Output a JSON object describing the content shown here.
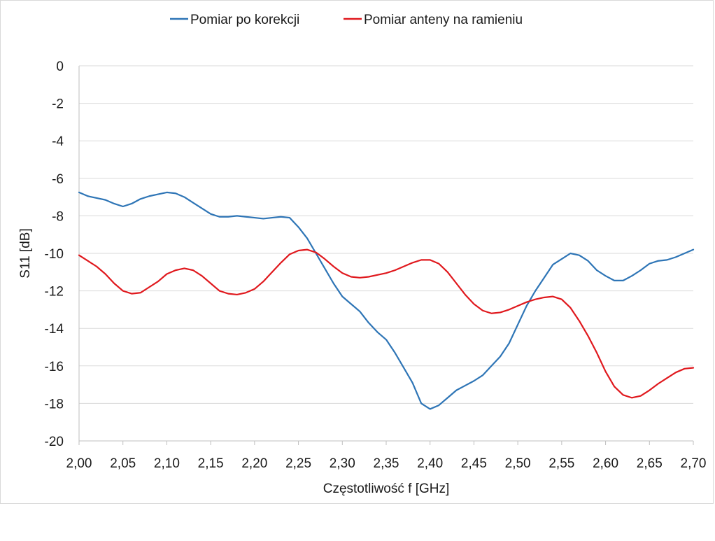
{
  "chart_data": {
    "type": "line",
    "xlabel": "Częstotliwość f [GHz]",
    "ylabel": "S11 [dB]",
    "xlim": [
      2.0,
      2.7
    ],
    "ylim": [
      -20,
      0
    ],
    "x_ticks": [
      2.0,
      2.05,
      2.1,
      2.15,
      2.2,
      2.25,
      2.3,
      2.35,
      2.4,
      2.45,
      2.5,
      2.55,
      2.6,
      2.65,
      2.7
    ],
    "x_tick_labels": [
      "2,00",
      "2,05",
      "2,10",
      "2,15",
      "2,20",
      "2,25",
      "2,30",
      "2,35",
      "2,40",
      "2,45",
      "2,50",
      "2,55",
      "2,60",
      "2,65",
      "2,70"
    ],
    "y_ticks": [
      0,
      -2,
      -4,
      -6,
      -8,
      -10,
      -12,
      -14,
      -16,
      -18,
      -20
    ],
    "y_tick_labels": [
      "0",
      "-2",
      "-4",
      "-6",
      "-8",
      "-10",
      "-12",
      "-14",
      "-16",
      "-18",
      "-20"
    ],
    "grid": "horizontal",
    "legend_position": "top",
    "series": [
      {
        "name": "Pomiar po korekcji",
        "color": "#2e75b6",
        "points": [
          [
            2.0,
            -6.75
          ],
          [
            2.01,
            -6.95
          ],
          [
            2.02,
            -7.05
          ],
          [
            2.03,
            -7.15
          ],
          [
            2.04,
            -7.35
          ],
          [
            2.05,
            -7.5
          ],
          [
            2.06,
            -7.35
          ],
          [
            2.07,
            -7.1
          ],
          [
            2.08,
            -6.95
          ],
          [
            2.09,
            -6.85
          ],
          [
            2.1,
            -6.75
          ],
          [
            2.11,
            -6.8
          ],
          [
            2.12,
            -7.0
          ],
          [
            2.13,
            -7.3
          ],
          [
            2.14,
            -7.6
          ],
          [
            2.15,
            -7.9
          ],
          [
            2.16,
            -8.05
          ],
          [
            2.17,
            -8.05
          ],
          [
            2.18,
            -8.0
          ],
          [
            2.19,
            -8.05
          ],
          [
            2.2,
            -8.1
          ],
          [
            2.21,
            -8.15
          ],
          [
            2.22,
            -8.1
          ],
          [
            2.23,
            -8.05
          ],
          [
            2.24,
            -8.1
          ],
          [
            2.25,
            -8.6
          ],
          [
            2.26,
            -9.2
          ],
          [
            2.27,
            -10.0
          ],
          [
            2.28,
            -10.8
          ],
          [
            2.29,
            -11.6
          ],
          [
            2.3,
            -12.3
          ],
          [
            2.31,
            -12.7
          ],
          [
            2.32,
            -13.1
          ],
          [
            2.33,
            -13.7
          ],
          [
            2.34,
            -14.2
          ],
          [
            2.35,
            -14.6
          ],
          [
            2.36,
            -15.3
          ],
          [
            2.37,
            -16.1
          ],
          [
            2.38,
            -16.9
          ],
          [
            2.39,
            -18.0
          ],
          [
            2.4,
            -18.3
          ],
          [
            2.41,
            -18.1
          ],
          [
            2.42,
            -17.7
          ],
          [
            2.43,
            -17.3
          ],
          [
            2.44,
            -17.05
          ],
          [
            2.45,
            -16.8
          ],
          [
            2.46,
            -16.5
          ],
          [
            2.47,
            -16.0
          ],
          [
            2.48,
            -15.5
          ],
          [
            2.49,
            -14.8
          ],
          [
            2.5,
            -13.8
          ],
          [
            2.51,
            -12.8
          ],
          [
            2.52,
            -12.0
          ],
          [
            2.53,
            -11.3
          ],
          [
            2.54,
            -10.6
          ],
          [
            2.55,
            -10.3
          ],
          [
            2.56,
            -10.0
          ],
          [
            2.57,
            -10.1
          ],
          [
            2.58,
            -10.4
          ],
          [
            2.59,
            -10.9
          ],
          [
            2.6,
            -11.2
          ],
          [
            2.61,
            -11.45
          ],
          [
            2.62,
            -11.45
          ],
          [
            2.63,
            -11.2
          ],
          [
            2.64,
            -10.9
          ],
          [
            2.65,
            -10.55
          ],
          [
            2.66,
            -10.4
          ],
          [
            2.67,
            -10.35
          ],
          [
            2.68,
            -10.2
          ],
          [
            2.69,
            -10.0
          ],
          [
            2.7,
            -9.8
          ]
        ]
      },
      {
        "name": "Pomiar anteny na ramieniu",
        "color": "#e0191e",
        "points": [
          [
            2.0,
            -10.1
          ],
          [
            2.01,
            -10.4
          ],
          [
            2.02,
            -10.7
          ],
          [
            2.03,
            -11.1
          ],
          [
            2.04,
            -11.6
          ],
          [
            2.05,
            -12.0
          ],
          [
            2.06,
            -12.15
          ],
          [
            2.07,
            -12.1
          ],
          [
            2.08,
            -11.8
          ],
          [
            2.09,
            -11.5
          ],
          [
            2.1,
            -11.1
          ],
          [
            2.11,
            -10.9
          ],
          [
            2.12,
            -10.8
          ],
          [
            2.13,
            -10.9
          ],
          [
            2.14,
            -11.2
          ],
          [
            2.15,
            -11.6
          ],
          [
            2.16,
            -12.0
          ],
          [
            2.17,
            -12.15
          ],
          [
            2.18,
            -12.2
          ],
          [
            2.19,
            -12.1
          ],
          [
            2.2,
            -11.9
          ],
          [
            2.21,
            -11.5
          ],
          [
            2.22,
            -11.0
          ],
          [
            2.23,
            -10.5
          ],
          [
            2.24,
            -10.05
          ],
          [
            2.25,
            -9.85
          ],
          [
            2.26,
            -9.8
          ],
          [
            2.27,
            -9.95
          ],
          [
            2.28,
            -10.3
          ],
          [
            2.29,
            -10.7
          ],
          [
            2.3,
            -11.05
          ],
          [
            2.31,
            -11.25
          ],
          [
            2.32,
            -11.3
          ],
          [
            2.33,
            -11.25
          ],
          [
            2.34,
            -11.15
          ],
          [
            2.35,
            -11.05
          ],
          [
            2.36,
            -10.9
          ],
          [
            2.37,
            -10.7
          ],
          [
            2.38,
            -10.5
          ],
          [
            2.39,
            -10.35
          ],
          [
            2.4,
            -10.35
          ],
          [
            2.41,
            -10.55
          ],
          [
            2.42,
            -11.0
          ],
          [
            2.43,
            -11.6
          ],
          [
            2.44,
            -12.2
          ],
          [
            2.45,
            -12.7
          ],
          [
            2.46,
            -13.05
          ],
          [
            2.47,
            -13.2
          ],
          [
            2.48,
            -13.15
          ],
          [
            2.49,
            -13.0
          ],
          [
            2.5,
            -12.8
          ],
          [
            2.51,
            -12.6
          ],
          [
            2.52,
            -12.45
          ],
          [
            2.53,
            -12.35
          ],
          [
            2.54,
            -12.3
          ],
          [
            2.55,
            -12.45
          ],
          [
            2.56,
            -12.9
          ],
          [
            2.57,
            -13.6
          ],
          [
            2.58,
            -14.4
          ],
          [
            2.59,
            -15.3
          ],
          [
            2.6,
            -16.3
          ],
          [
            2.61,
            -17.1
          ],
          [
            2.62,
            -17.55
          ],
          [
            2.63,
            -17.7
          ],
          [
            2.64,
            -17.6
          ],
          [
            2.65,
            -17.3
          ],
          [
            2.66,
            -16.95
          ],
          [
            2.67,
            -16.65
          ],
          [
            2.68,
            -16.35
          ],
          [
            2.69,
            -16.15
          ],
          [
            2.7,
            -16.1
          ]
        ]
      }
    ]
  }
}
